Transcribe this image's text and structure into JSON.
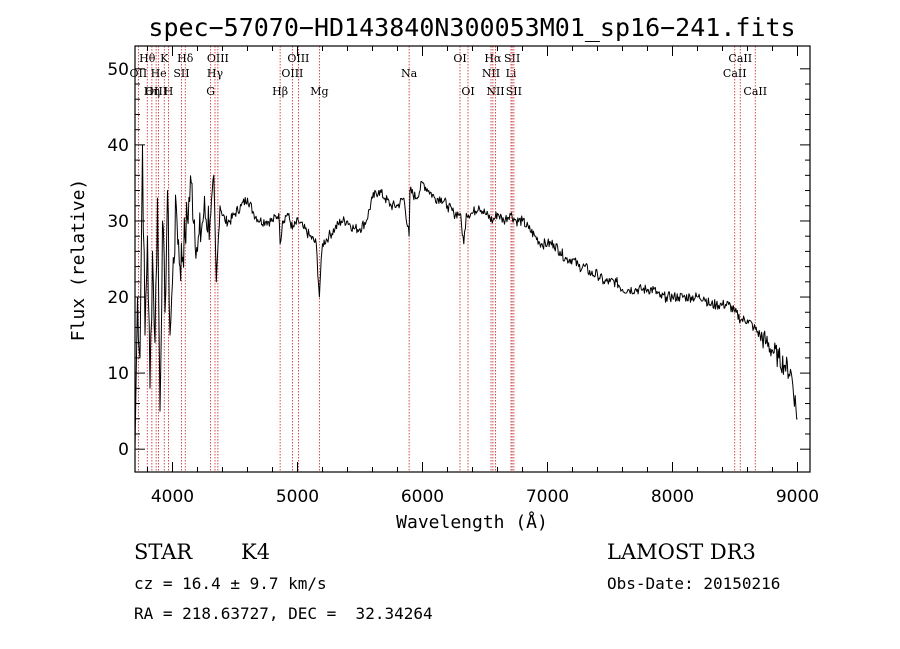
{
  "chart_data": {
    "type": "line",
    "title": "spec−57070−HD143840N300053M01_sp16−241.fits",
    "xlabel": "Wavelength (Å)",
    "ylabel": "Flux (relative)",
    "xlim": [
      3700,
      9100
    ],
    "ylim": [
      -3,
      53
    ],
    "xticks": [
      4000,
      5000,
      6000,
      7000,
      8000,
      9000
    ],
    "yticks": [
      0,
      10,
      20,
      30,
      40,
      50
    ],
    "grid": false,
    "series": [
      {
        "name": "spectrum",
        "x": [
          3700,
          3720,
          3740,
          3760,
          3780,
          3800,
          3820,
          3840,
          3860,
          3880,
          3900,
          3920,
          3940,
          3960,
          3980,
          4000,
          4030,
          4060,
          4100,
          4150,
          4200,
          4250,
          4300,
          4330,
          4350,
          4380,
          4420,
          4460,
          4500,
          4550,
          4600,
          4650,
          4700,
          4750,
          4800,
          4850,
          4861,
          4880,
          4920,
          4960,
          5007,
          5050,
          5100,
          5150,
          5175,
          5184,
          5200,
          5250,
          5300,
          5350,
          5400,
          5450,
          5500,
          5550,
          5600,
          5650,
          5700,
          5750,
          5800,
          5850,
          5893,
          5900,
          5950,
          6000,
          6050,
          6100,
          6150,
          6200,
          6250,
          6300,
          6330,
          6350,
          6400,
          6450,
          6500,
          6563,
          6600,
          6650,
          6700,
          6750,
          6800,
          6850,
          6900,
          6950,
          7000,
          7050,
          7100,
          7150,
          7200,
          7250,
          7300,
          7350,
          7400,
          7450,
          7500,
          7550,
          7600,
          7650,
          7700,
          7750,
          7800,
          7850,
          7900,
          7950,
          8000,
          8050,
          8100,
          8150,
          8200,
          8250,
          8300,
          8350,
          8400,
          8450,
          8500,
          8550,
          8600,
          8650,
          8700,
          8750,
          8800,
          8850,
          8900,
          8950,
          9000
        ],
        "y": [
          0,
          20,
          12,
          40,
          15,
          28,
          8,
          26,
          14,
          33,
          5,
          30,
          18,
          34,
          15,
          22,
          32,
          24,
          28,
          35,
          26,
          31,
          30,
          36,
          22,
          32,
          30,
          30,
          31,
          32,
          33,
          31,
          30,
          30,
          30,
          31,
          27,
          30,
          31,
          29,
          30,
          29,
          28,
          27,
          20,
          23,
          27,
          28,
          29,
          30,
          30,
          29,
          29,
          30,
          33,
          34,
          33,
          32,
          32,
          33,
          28,
          34,
          33,
          35,
          34,
          33,
          33,
          32,
          31,
          31,
          27,
          31,
          31,
          32,
          31,
          30,
          31,
          30,
          31,
          30,
          30,
          29,
          28,
          27,
          27,
          27,
          26,
          25,
          25,
          24,
          24,
          23,
          23,
          22,
          22,
          22,
          21,
          21,
          21,
          21,
          21,
          21,
          20,
          20,
          20,
          20,
          20,
          20,
          20,
          20,
          19,
          19,
          19,
          19,
          18,
          17,
          17,
          16,
          15,
          14,
          13,
          12,
          11,
          10,
          4
        ]
      }
    ],
    "line_markers": [
      {
        "label": "Hθ",
        "wl": 3798,
        "row": 1
      },
      {
        "label": "OII",
        "wl": 3727,
        "row": 2
      },
      {
        "label": "OIII",
        "wl": 3869,
        "row": 3
      },
      {
        "label": "He",
        "wl": 3889,
        "row": 2
      },
      {
        "label": "Hη",
        "wl": 3835,
        "row": 3
      },
      {
        "label": "K",
        "wl": 3934,
        "row": 1
      },
      {
        "label": "H",
        "wl": 3968,
        "row": 3
      },
      {
        "label": "SII",
        "wl": 4072,
        "row": 2
      },
      {
        "label": "Hδ",
        "wl": 4102,
        "row": 1
      },
      {
        "label": "OIII",
        "wl": 4363,
        "row": 1
      },
      {
        "label": "Hγ",
        "wl": 4340,
        "row": 2
      },
      {
        "label": "G",
        "wl": 4305,
        "row": 3
      },
      {
        "label": "Hβ",
        "wl": 4861,
        "row": 3
      },
      {
        "label": "OIII",
        "wl": 5007,
        "row": 1
      },
      {
        "label": "OIII",
        "wl": 4959,
        "row": 2
      },
      {
        "label": "Mg",
        "wl": 5175,
        "row": 3
      },
      {
        "label": "Na",
        "wl": 5893,
        "row": 2
      },
      {
        "label": "OI",
        "wl": 6300,
        "row": 1
      },
      {
        "label": "OI",
        "wl": 6364,
        "row": 3
      },
      {
        "label": "Hα",
        "wl": 6563,
        "row": 1
      },
      {
        "label": "NII",
        "wl": 6548,
        "row": 2
      },
      {
        "label": "NII",
        "wl": 6584,
        "row": 3
      },
      {
        "label": "SII",
        "wl": 6717,
        "row": 1
      },
      {
        "label": "Li",
        "wl": 6708,
        "row": 2
      },
      {
        "label": "SII",
        "wl": 6731,
        "row": 3
      },
      {
        "label": "CaII",
        "wl": 8542,
        "row": 1
      },
      {
        "label": "CaII",
        "wl": 8498,
        "row": 2
      },
      {
        "label": "CaII",
        "wl": 8662,
        "row": 3
      }
    ]
  },
  "info": {
    "object_class": "STAR",
    "subclass": "K4",
    "survey": "LAMOST DR3",
    "cz_line": "cz = 16.4 ± 9.7 km/s",
    "obs_date_line": "Obs-Date: 20150216",
    "radec_line": "RA = 218.63727, DEC =  32.34264"
  },
  "colors": {
    "spectrum": "#000000",
    "marker_lines": "#cc2222",
    "axes": "#000000"
  }
}
